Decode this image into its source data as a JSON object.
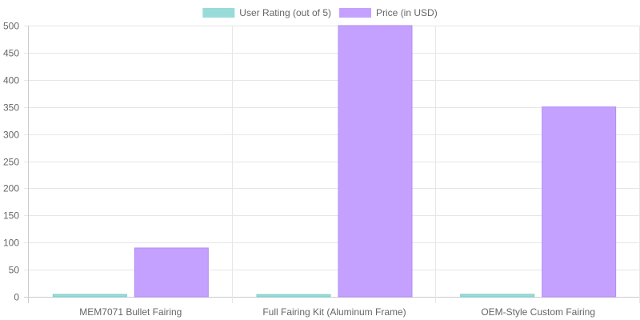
{
  "chart_data": {
    "type": "bar",
    "categories": [
      "MEM7071 Bullet Fairing",
      "Full Fairing Kit (Aluminum Frame)",
      "OEM-Style Custom Fairing"
    ],
    "series": [
      {
        "name": "User Rating (out of 5)",
        "values": [
          4.5,
          4.2,
          4.7
        ],
        "color": "#99dbd9",
        "border": "#7ccfcc"
      },
      {
        "name": "Price (in USD)",
        "values": [
          89.99,
          499.99,
          349.99
        ],
        "color": "#c4a1ff",
        "border": "#b38bf5"
      }
    ],
    "ylim": [
      0,
      500
    ],
    "yticks": [
      0,
      50,
      100,
      150,
      200,
      250,
      300,
      350,
      400,
      450,
      500
    ],
    "grid": true,
    "legend": "top-center"
  }
}
